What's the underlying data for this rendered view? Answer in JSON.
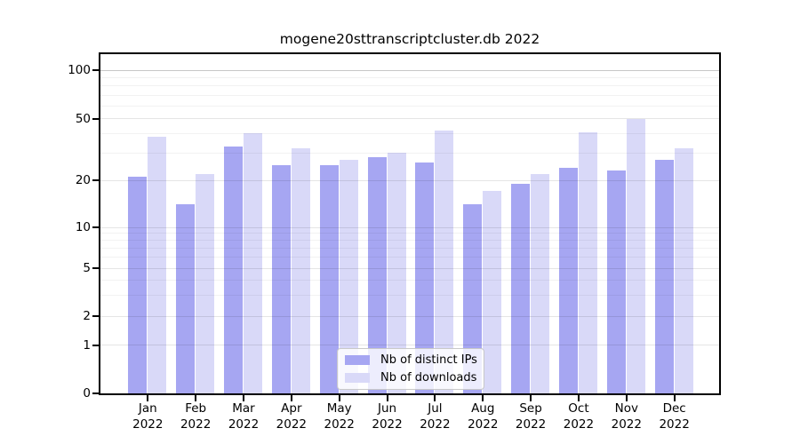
{
  "chart_data": {
    "type": "bar",
    "title": "mogene20sttranscriptcluster.db 2022",
    "year_label": "2022",
    "categories": [
      "Jan",
      "Feb",
      "Mar",
      "Apr",
      "May",
      "Jun",
      "Jul",
      "Aug",
      "Sep",
      "Oct",
      "Nov",
      "Dec"
    ],
    "series": [
      {
        "name": "Nb of distinct IPs",
        "color": "#a6a6f2",
        "values": [
          21,
          14,
          33,
          25,
          25,
          28,
          26,
          14,
          19,
          24,
          23,
          27
        ]
      },
      {
        "name": "Nb of downloads",
        "color": "#d9d9f8",
        "values": [
          38,
          22,
          40,
          32,
          27,
          30,
          42,
          17,
          22,
          41,
          50,
          32
        ]
      }
    ],
    "xlabel": "",
    "ylabel": "",
    "yscale": "log-like",
    "ylim": [
      0,
      115
    ],
    "yticks": [
      100,
      50,
      20,
      10,
      5,
      2,
      1,
      0
    ],
    "minor_gridlines": [
      90,
      80,
      70,
      60,
      40,
      30,
      9,
      8,
      7,
      6,
      4,
      3
    ],
    "grid": "on",
    "legend_position": "bottom-center",
    "frame_color": "#000000",
    "background_color": "#ffffff"
  }
}
